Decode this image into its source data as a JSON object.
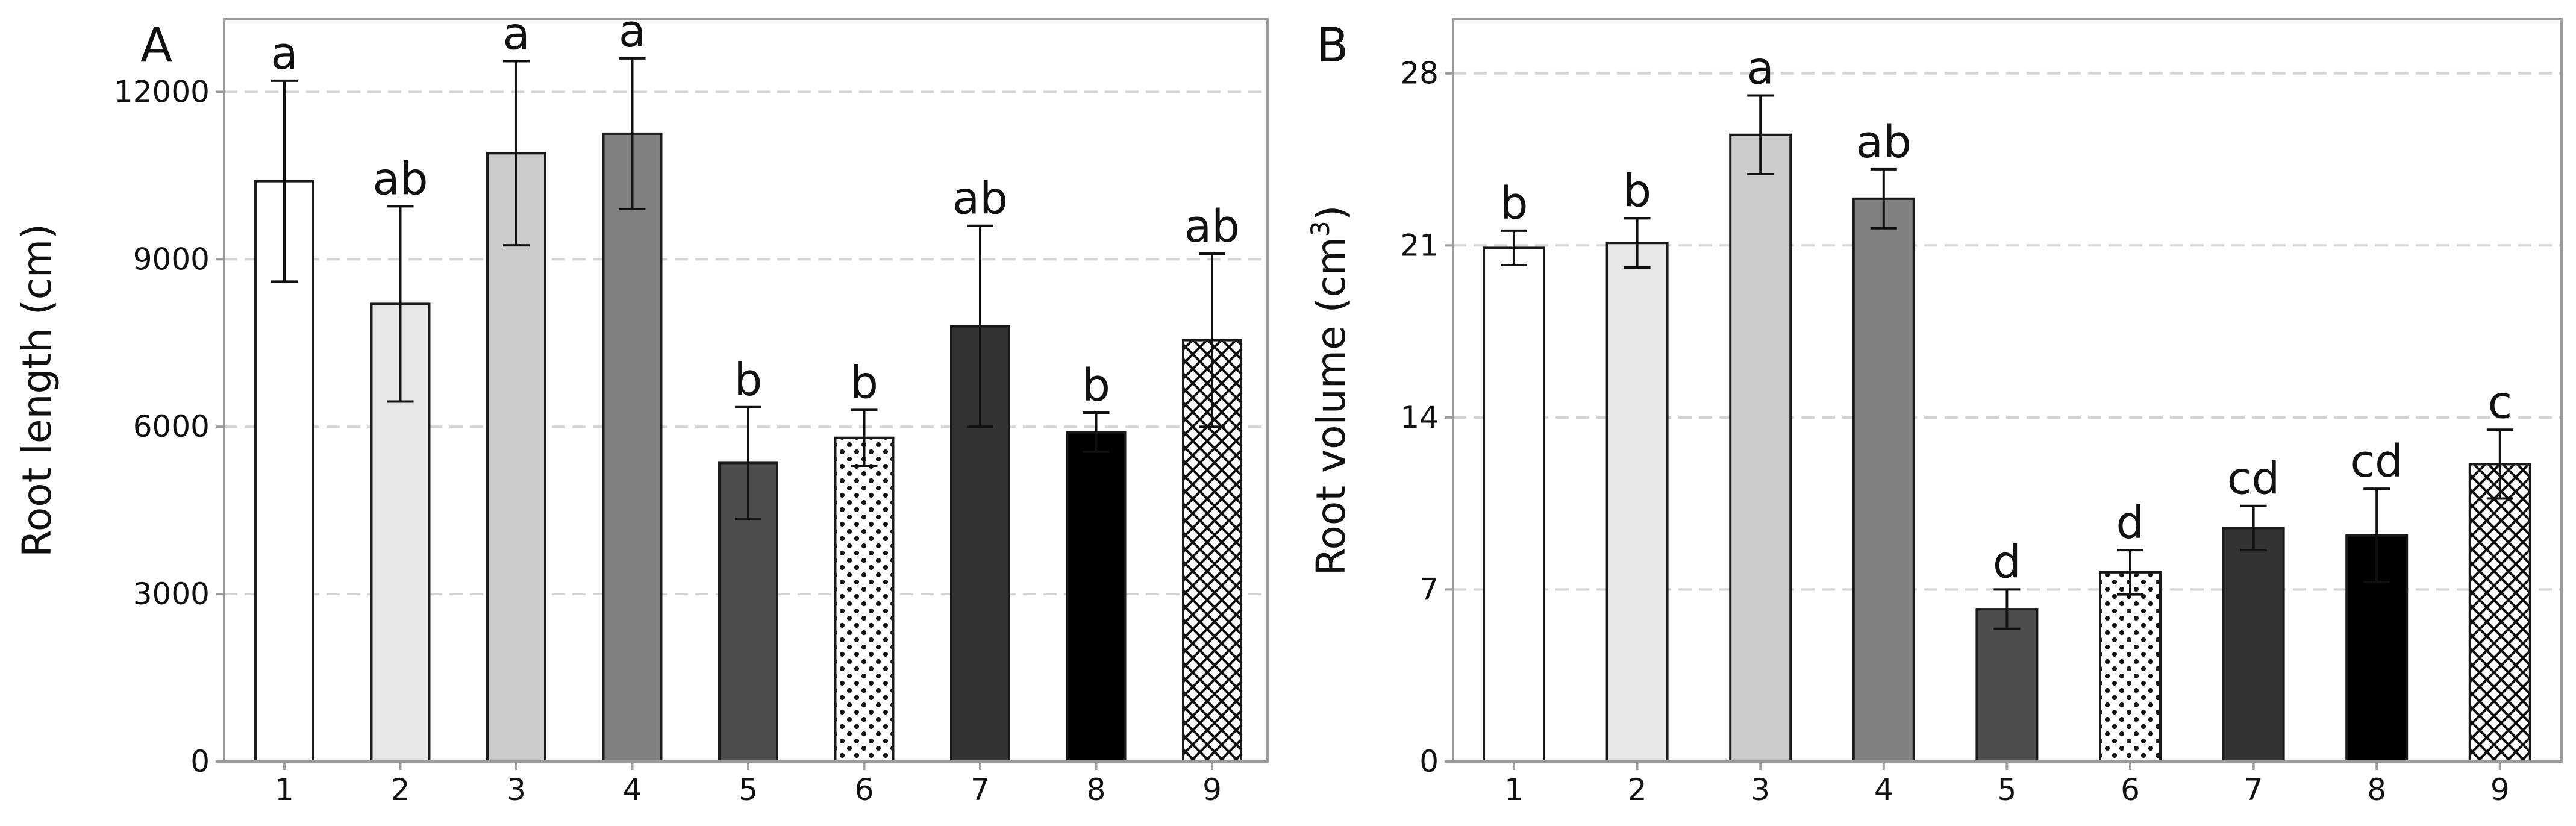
{
  "colors": {
    "c1": "#ffffff",
    "c2": "#e6e6e6",
    "c3": "#cccccc",
    "c4": "#808080",
    "c5": "#4d4d4d",
    "c7": "#333333",
    "c8": "#000000",
    "edge": "#1a1a1a",
    "frame": "#9a9a9a",
    "grid": "#d4d4d4"
  },
  "chart_data": [
    {
      "type": "bar",
      "panel": "A",
      "title": "",
      "xlabel": "",
      "ylabel": "Root length (cm)",
      "ylim": [
        0,
        13300
      ],
      "yticks": [
        0,
        3000,
        6000,
        9000,
        12000
      ],
      "grid": "horizontal dashed",
      "categories": [
        "1",
        "2",
        "3",
        "4",
        "5",
        "6",
        "7",
        "8",
        "9"
      ],
      "values": [
        10400,
        8200,
        10900,
        11250,
        5350,
        5800,
        7800,
        5900,
        7550
      ],
      "errors": [
        1800,
        1750,
        1650,
        1350,
        1000,
        500,
        1800,
        350,
        1550
      ],
      "letters": [
        "a",
        "ab",
        "a",
        "a",
        "b",
        "b",
        "ab",
        "b",
        "ab"
      ],
      "fills": [
        "white",
        "light gray",
        "gray",
        "dark gray",
        "darker gray",
        "dotted",
        "charcoal",
        "black",
        "crosshatch"
      ]
    },
    {
      "type": "bar",
      "panel": "B",
      "title": "",
      "xlabel": "",
      "ylabel": "Root volume (cm",
      "ylabel_sup": "3",
      "ylabel_end": ")",
      "ylim": [
        0,
        30.2
      ],
      "yticks": [
        0,
        7,
        14,
        21,
        28
      ],
      "grid": "horizontal dashed",
      "categories": [
        "1",
        "2",
        "3",
        "4",
        "5",
        "6",
        "7",
        "8",
        "9"
      ],
      "values": [
        20.9,
        21.1,
        25.5,
        22.9,
        6.2,
        7.7,
        9.5,
        9.2,
        12.1
      ],
      "errors": [
        0.7,
        1.0,
        1.6,
        1.2,
        0.8,
        0.9,
        0.9,
        1.9,
        1.4
      ],
      "letters": [
        "b",
        "b",
        "a",
        "ab",
        "d",
        "d",
        "cd",
        "cd",
        "c"
      ],
      "fills": [
        "white",
        "light gray",
        "gray",
        "dark gray",
        "darker gray",
        "dotted",
        "charcoal",
        "black",
        "crosshatch"
      ]
    }
  ]
}
